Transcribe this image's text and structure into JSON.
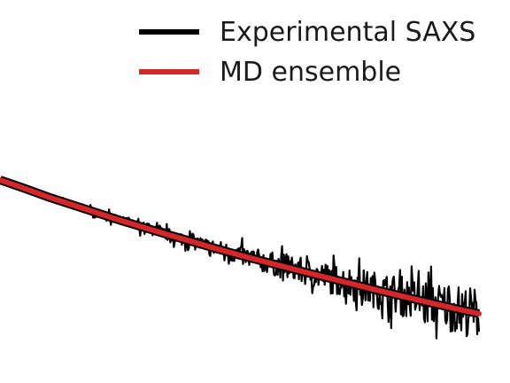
{
  "chart_data": {
    "type": "line",
    "legend": {
      "placement": "top-right"
    },
    "axes_visible": false,
    "grid": false,
    "series": [
      {
        "name": "Experimental SAXS",
        "color": "#000000",
        "noisy": true,
        "x": [
          0.0,
          0.05,
          0.1,
          0.15,
          0.2,
          0.25,
          0.3,
          0.35,
          0.4,
          0.45,
          0.5,
          0.55,
          0.6,
          0.65,
          0.7,
          0.75,
          0.8,
          0.85,
          0.9,
          0.95,
          1.0
        ],
        "y": [
          1.0,
          0.946,
          0.889,
          0.838,
          0.787,
          0.736,
          0.689,
          0.642,
          0.597,
          0.551,
          0.507,
          0.466,
          0.426,
          0.385,
          0.346,
          0.307,
          0.268,
          0.23,
          0.193,
          0.157,
          0.123
        ]
      },
      {
        "name": "MD ensemble",
        "color": "#d62728",
        "noisy": false,
        "x": [
          0.0,
          0.05,
          0.1,
          0.15,
          0.2,
          0.25,
          0.3,
          0.35,
          0.4,
          0.45,
          0.5,
          0.55,
          0.6,
          0.65,
          0.7,
          0.75,
          0.8,
          0.85,
          0.9,
          0.95,
          1.0
        ],
        "y": [
          1.0,
          0.946,
          0.889,
          0.838,
          0.787,
          0.736,
          0.689,
          0.642,
          0.597,
          0.551,
          0.507,
          0.466,
          0.426,
          0.385,
          0.346,
          0.307,
          0.268,
          0.23,
          0.193,
          0.157,
          0.123
        ]
      }
    ]
  }
}
